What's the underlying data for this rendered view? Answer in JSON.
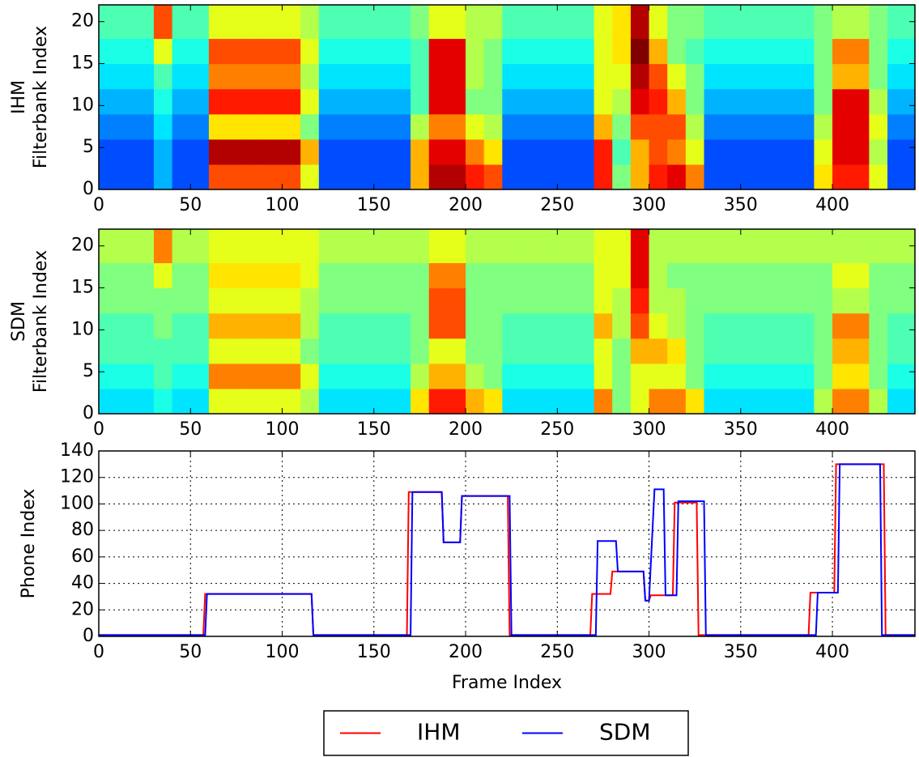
{
  "chart_data": [
    {
      "type": "heatmap",
      "colormap": "jet",
      "ylabel": [
        "IHM",
        "Filterbank Index"
      ],
      "xlim": [
        0,
        445
      ],
      "xticks": [
        0,
        50,
        100,
        150,
        200,
        250,
        300,
        350,
        400
      ],
      "ylim": [
        0,
        22
      ],
      "yticks": [
        0,
        5,
        10,
        15,
        20
      ],
      "xbins": [
        0,
        10,
        20,
        30,
        40,
        50,
        60,
        70,
        80,
        90,
        100,
        110,
        120,
        130,
        140,
        150,
        160,
        170,
        180,
        190,
        200,
        210,
        220,
        230,
        240,
        250,
        260,
        270,
        280,
        290,
        300,
        310,
        320,
        330,
        340,
        350,
        360,
        370,
        380,
        390,
        400,
        410,
        420,
        430,
        440,
        445
      ],
      "ybins": [
        0,
        3,
        6,
        9,
        12,
        15,
        18,
        22
      ],
      "z": [
        [
          0.2,
          0.2,
          0.25,
          0.3,
          0.35,
          0.4,
          0.45
        ],
        [
          0.2,
          0.2,
          0.25,
          0.3,
          0.35,
          0.4,
          0.45
        ],
        [
          0.2,
          0.2,
          0.25,
          0.3,
          0.35,
          0.4,
          0.45
        ],
        [
          0.3,
          0.3,
          0.35,
          0.4,
          0.45,
          0.6,
          0.8
        ],
        [
          0.2,
          0.2,
          0.25,
          0.3,
          0.35,
          0.4,
          0.45
        ],
        [
          0.2,
          0.2,
          0.25,
          0.3,
          0.35,
          0.4,
          0.45
        ],
        [
          0.8,
          0.95,
          0.65,
          0.85,
          0.75,
          0.8,
          0.6
        ],
        [
          0.8,
          0.95,
          0.65,
          0.85,
          0.75,
          0.8,
          0.6
        ],
        [
          0.8,
          0.95,
          0.65,
          0.85,
          0.75,
          0.8,
          0.6
        ],
        [
          0.8,
          0.95,
          0.65,
          0.85,
          0.75,
          0.8,
          0.6
        ],
        [
          0.8,
          0.95,
          0.65,
          0.85,
          0.75,
          0.8,
          0.6
        ],
        [
          0.6,
          0.7,
          0.5,
          0.6,
          0.55,
          0.6,
          0.55
        ],
        [
          0.2,
          0.2,
          0.25,
          0.3,
          0.35,
          0.4,
          0.45
        ],
        [
          0.2,
          0.2,
          0.25,
          0.3,
          0.35,
          0.4,
          0.45
        ],
        [
          0.2,
          0.2,
          0.25,
          0.3,
          0.35,
          0.4,
          0.45
        ],
        [
          0.2,
          0.2,
          0.25,
          0.3,
          0.35,
          0.4,
          0.45
        ],
        [
          0.2,
          0.2,
          0.25,
          0.3,
          0.35,
          0.4,
          0.45
        ],
        [
          0.7,
          0.7,
          0.55,
          0.45,
          0.45,
          0.45,
          0.5
        ],
        [
          0.95,
          0.9,
          0.75,
          0.9,
          0.9,
          0.9,
          0.6
        ],
        [
          0.95,
          0.9,
          0.75,
          0.9,
          0.9,
          0.9,
          0.6
        ],
        [
          0.85,
          0.75,
          0.6,
          0.5,
          0.55,
          0.55,
          0.55
        ],
        [
          0.8,
          0.65,
          0.55,
          0.5,
          0.5,
          0.5,
          0.55
        ],
        [
          0.2,
          0.2,
          0.25,
          0.3,
          0.35,
          0.4,
          0.45
        ],
        [
          0.2,
          0.2,
          0.25,
          0.3,
          0.35,
          0.4,
          0.45
        ],
        [
          0.2,
          0.2,
          0.25,
          0.3,
          0.35,
          0.4,
          0.45
        ],
        [
          0.2,
          0.2,
          0.25,
          0.3,
          0.35,
          0.4,
          0.45
        ],
        [
          0.2,
          0.2,
          0.25,
          0.3,
          0.35,
          0.4,
          0.45
        ],
        [
          0.85,
          0.85,
          0.7,
          0.6,
          0.6,
          0.6,
          0.6
        ],
        [
          0.5,
          0.45,
          0.5,
          0.55,
          0.6,
          0.65,
          0.65
        ],
        [
          0.7,
          0.7,
          0.8,
          0.9,
          0.95,
          1,
          0.95
        ],
        [
          0.85,
          0.8,
          0.8,
          0.85,
          0.8,
          0.7,
          0.6
        ],
        [
          0.9,
          0.75,
          0.8,
          0.7,
          0.6,
          0.5,
          0.5
        ],
        [
          0.75,
          0.6,
          0.55,
          0.5,
          0.5,
          0.45,
          0.5
        ],
        [
          0.2,
          0.2,
          0.25,
          0.3,
          0.35,
          0.4,
          0.45
        ],
        [
          0.2,
          0.2,
          0.25,
          0.3,
          0.35,
          0.4,
          0.45
        ],
        [
          0.2,
          0.2,
          0.25,
          0.3,
          0.35,
          0.4,
          0.45
        ],
        [
          0.2,
          0.2,
          0.25,
          0.3,
          0.35,
          0.4,
          0.45
        ],
        [
          0.2,
          0.2,
          0.25,
          0.3,
          0.35,
          0.4,
          0.45
        ],
        [
          0.2,
          0.2,
          0.25,
          0.3,
          0.35,
          0.4,
          0.45
        ],
        [
          0.65,
          0.6,
          0.55,
          0.5,
          0.5,
          0.5,
          0.5
        ],
        [
          0.85,
          0.9,
          0.9,
          0.9,
          0.7,
          0.75,
          0.55
        ],
        [
          0.85,
          0.9,
          0.9,
          0.9,
          0.7,
          0.75,
          0.55
        ],
        [
          0.6,
          0.55,
          0.6,
          0.55,
          0.5,
          0.5,
          0.5
        ],
        [
          0.2,
          0.2,
          0.25,
          0.3,
          0.35,
          0.4,
          0.45
        ],
        [
          0.2,
          0.2,
          0.25,
          0.3,
          0.35,
          0.4,
          0.45
        ]
      ]
    },
    {
      "type": "heatmap",
      "colormap": "jet",
      "ylabel": [
        "SDM",
        "Filterbank Index"
      ],
      "xlim": [
        0,
        445
      ],
      "xticks": [
        0,
        50,
        100,
        150,
        200,
        250,
        300,
        350,
        400
      ],
      "ylim": [
        0,
        22
      ],
      "yticks": [
        0,
        5,
        10,
        15,
        20
      ],
      "xbins": [
        0,
        10,
        20,
        30,
        40,
        50,
        60,
        70,
        80,
        90,
        100,
        110,
        120,
        130,
        140,
        150,
        160,
        170,
        180,
        190,
        200,
        210,
        220,
        230,
        240,
        250,
        260,
        270,
        280,
        290,
        300,
        310,
        320,
        330,
        340,
        350,
        360,
        370,
        380,
        390,
        400,
        410,
        420,
        430,
        440,
        445
      ],
      "ybins": [
        0,
        3,
        6,
        9,
        12,
        15,
        18,
        22
      ],
      "z": [
        [
          0.35,
          0.4,
          0.45,
          0.45,
          0.5,
          0.5,
          0.55
        ],
        [
          0.35,
          0.4,
          0.45,
          0.45,
          0.5,
          0.5,
          0.55
        ],
        [
          0.35,
          0.4,
          0.45,
          0.45,
          0.5,
          0.5,
          0.55
        ],
        [
          0.4,
          0.45,
          0.45,
          0.5,
          0.5,
          0.6,
          0.75
        ],
        [
          0.35,
          0.4,
          0.45,
          0.45,
          0.5,
          0.5,
          0.55
        ],
        [
          0.35,
          0.4,
          0.45,
          0.45,
          0.5,
          0.5,
          0.55
        ],
        [
          0.6,
          0.75,
          0.6,
          0.7,
          0.6,
          0.65,
          0.6
        ],
        [
          0.6,
          0.75,
          0.6,
          0.7,
          0.6,
          0.65,
          0.6
        ],
        [
          0.6,
          0.75,
          0.6,
          0.7,
          0.6,
          0.65,
          0.6
        ],
        [
          0.6,
          0.75,
          0.6,
          0.7,
          0.6,
          0.65,
          0.6
        ],
        [
          0.6,
          0.75,
          0.6,
          0.7,
          0.6,
          0.65,
          0.6
        ],
        [
          0.55,
          0.6,
          0.5,
          0.55,
          0.55,
          0.6,
          0.6
        ],
        [
          0.35,
          0.4,
          0.45,
          0.45,
          0.5,
          0.5,
          0.55
        ],
        [
          0.35,
          0.4,
          0.45,
          0.45,
          0.5,
          0.5,
          0.55
        ],
        [
          0.35,
          0.4,
          0.45,
          0.45,
          0.5,
          0.5,
          0.55
        ],
        [
          0.35,
          0.4,
          0.45,
          0.45,
          0.5,
          0.5,
          0.55
        ],
        [
          0.35,
          0.4,
          0.45,
          0.45,
          0.5,
          0.5,
          0.55
        ],
        [
          0.65,
          0.55,
          0.5,
          0.5,
          0.5,
          0.5,
          0.55
        ],
        [
          0.85,
          0.7,
          0.6,
          0.8,
          0.8,
          0.75,
          0.6
        ],
        [
          0.85,
          0.7,
          0.6,
          0.8,
          0.8,
          0.75,
          0.6
        ],
        [
          0.7,
          0.55,
          0.5,
          0.5,
          0.5,
          0.5,
          0.55
        ],
        [
          0.65,
          0.5,
          0.5,
          0.5,
          0.5,
          0.5,
          0.55
        ],
        [
          0.35,
          0.4,
          0.45,
          0.45,
          0.5,
          0.5,
          0.55
        ],
        [
          0.35,
          0.4,
          0.45,
          0.45,
          0.5,
          0.5,
          0.55
        ],
        [
          0.35,
          0.4,
          0.45,
          0.45,
          0.5,
          0.5,
          0.55
        ],
        [
          0.35,
          0.4,
          0.45,
          0.45,
          0.5,
          0.5,
          0.55
        ],
        [
          0.35,
          0.4,
          0.45,
          0.45,
          0.5,
          0.5,
          0.55
        ],
        [
          0.75,
          0.6,
          0.6,
          0.7,
          0.6,
          0.6,
          0.6
        ],
        [
          0.5,
          0.5,
          0.5,
          0.55,
          0.55,
          0.6,
          0.6
        ],
        [
          0.6,
          0.6,
          0.7,
          0.8,
          0.85,
          0.9,
          0.9
        ],
        [
          0.75,
          0.6,
          0.7,
          0.6,
          0.55,
          0.55,
          0.55
        ],
        [
          0.75,
          0.6,
          0.65,
          0.55,
          0.55,
          0.5,
          0.55
        ],
        [
          0.65,
          0.5,
          0.5,
          0.5,
          0.5,
          0.5,
          0.55
        ],
        [
          0.35,
          0.4,
          0.45,
          0.45,
          0.5,
          0.5,
          0.55
        ],
        [
          0.35,
          0.4,
          0.45,
          0.45,
          0.5,
          0.5,
          0.55
        ],
        [
          0.35,
          0.4,
          0.45,
          0.45,
          0.5,
          0.5,
          0.55
        ],
        [
          0.35,
          0.4,
          0.45,
          0.45,
          0.5,
          0.5,
          0.55
        ],
        [
          0.35,
          0.4,
          0.45,
          0.45,
          0.5,
          0.5,
          0.55
        ],
        [
          0.35,
          0.4,
          0.45,
          0.45,
          0.5,
          0.5,
          0.55
        ],
        [
          0.55,
          0.5,
          0.5,
          0.5,
          0.5,
          0.5,
          0.55
        ],
        [
          0.75,
          0.65,
          0.7,
          0.75,
          0.55,
          0.6,
          0.55
        ],
        [
          0.75,
          0.65,
          0.7,
          0.75,
          0.55,
          0.6,
          0.55
        ],
        [
          0.55,
          0.5,
          0.5,
          0.5,
          0.5,
          0.5,
          0.55
        ],
        [
          0.35,
          0.4,
          0.45,
          0.45,
          0.5,
          0.5,
          0.55
        ],
        [
          0.35,
          0.4,
          0.45,
          0.45,
          0.5,
          0.5,
          0.55
        ]
      ]
    },
    {
      "type": "line",
      "xlabel": "Frame Index",
      "ylabel": "Phone Index",
      "grid": true,
      "legend": "bottom",
      "xlim": [
        0,
        445
      ],
      "xticks": [
        0,
        50,
        100,
        150,
        200,
        250,
        300,
        350,
        400
      ],
      "ylim": [
        0,
        140
      ],
      "yticks": [
        0,
        20,
        40,
        60,
        80,
        100,
        120,
        140
      ],
      "series": [
        {
          "name": "IHM",
          "color": "#ff0000",
          "x": [
            0,
            57,
            58,
            116,
            117,
            168,
            169,
            187,
            188,
            197,
            198,
            223,
            224,
            268,
            269,
            279,
            280,
            297,
            298,
            300,
            301,
            313,
            314,
            326,
            327,
            387,
            388,
            401,
            402,
            428,
            429,
            445
          ],
          "values": [
            1,
            1,
            32,
            32,
            1,
            1,
            109,
            109,
            71,
            71,
            106,
            106,
            1,
            1,
            32,
            32,
            49,
            49,
            27,
            27,
            31,
            31,
            101,
            101,
            1,
            1,
            33,
            33,
            130,
            130,
            1,
            1
          ]
        },
        {
          "name": "SDM",
          "color": "#0000ff",
          "x": [
            0,
            58,
            59,
            116,
            117,
            170,
            171,
            187,
            188,
            197,
            198,
            224,
            225,
            271,
            272,
            282,
            283,
            297,
            298,
            300,
            303,
            308,
            309,
            315,
            316,
            330,
            331,
            391,
            392,
            403,
            404,
            426,
            427,
            445
          ],
          "values": [
            1,
            1,
            32,
            32,
            1,
            1,
            109,
            109,
            71,
            71,
            106,
            106,
            1,
            1,
            72,
            72,
            49,
            49,
            27,
            27,
            111,
            111,
            31,
            31,
            102,
            102,
            1,
            1,
            33,
            33,
            130,
            130,
            1,
            1
          ]
        }
      ]
    }
  ]
}
